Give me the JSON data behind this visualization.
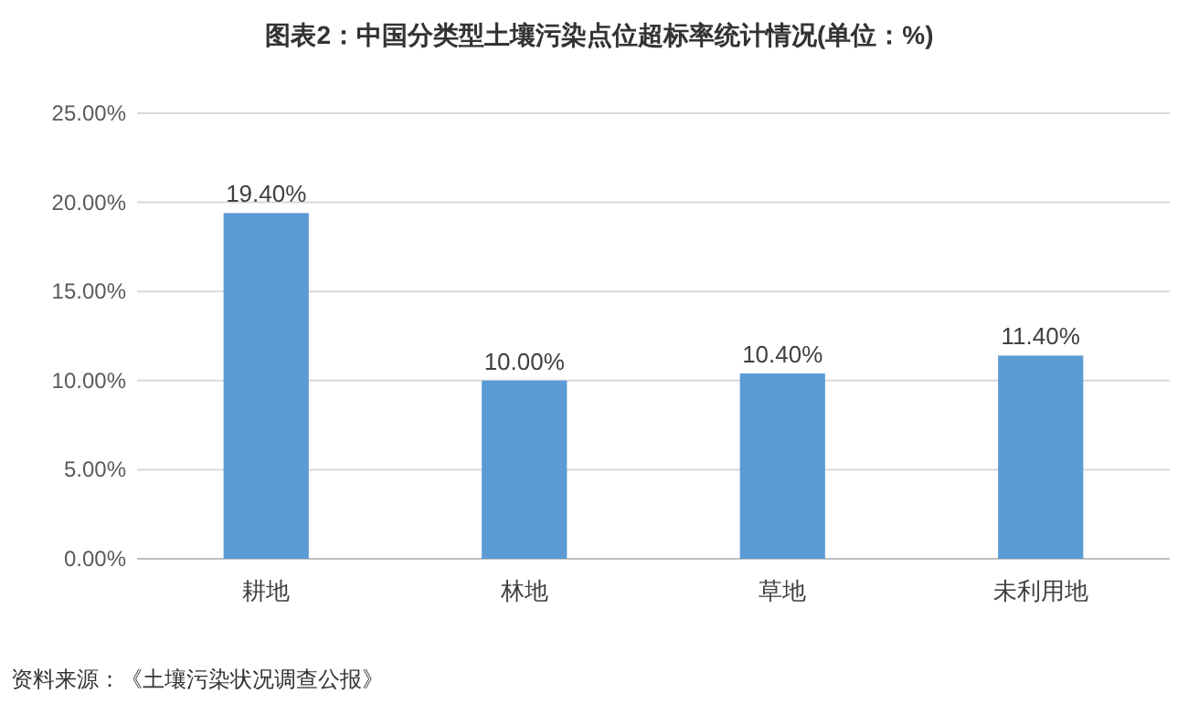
{
  "chart_data": {
    "type": "bar",
    "title": "图表2：中国分类型土壤污染点位超标率统计情况(单位：%)",
    "categories": [
      "耕地",
      "林地",
      "草地",
      "未利用地"
    ],
    "values": [
      19.4,
      10.0,
      10.4,
      11.4
    ],
    "value_labels": [
      "19.40%",
      "10.00%",
      "10.40%",
      "11.40%"
    ],
    "color": "#5b9bd5",
    "ylim": [
      0,
      25
    ],
    "yticks": [
      {
        "value": 0,
        "label": "0.00%"
      },
      {
        "value": 5,
        "label": "5.00%"
      },
      {
        "value": 10,
        "label": "10.00%"
      },
      {
        "value": 15,
        "label": "15.00%"
      },
      {
        "value": 20,
        "label": "20.00%"
      },
      {
        "value": 25,
        "label": "25.00%"
      }
    ],
    "grid": "y",
    "annotations": [
      "资料来源：《土壤污染状况调查公报》"
    ]
  }
}
